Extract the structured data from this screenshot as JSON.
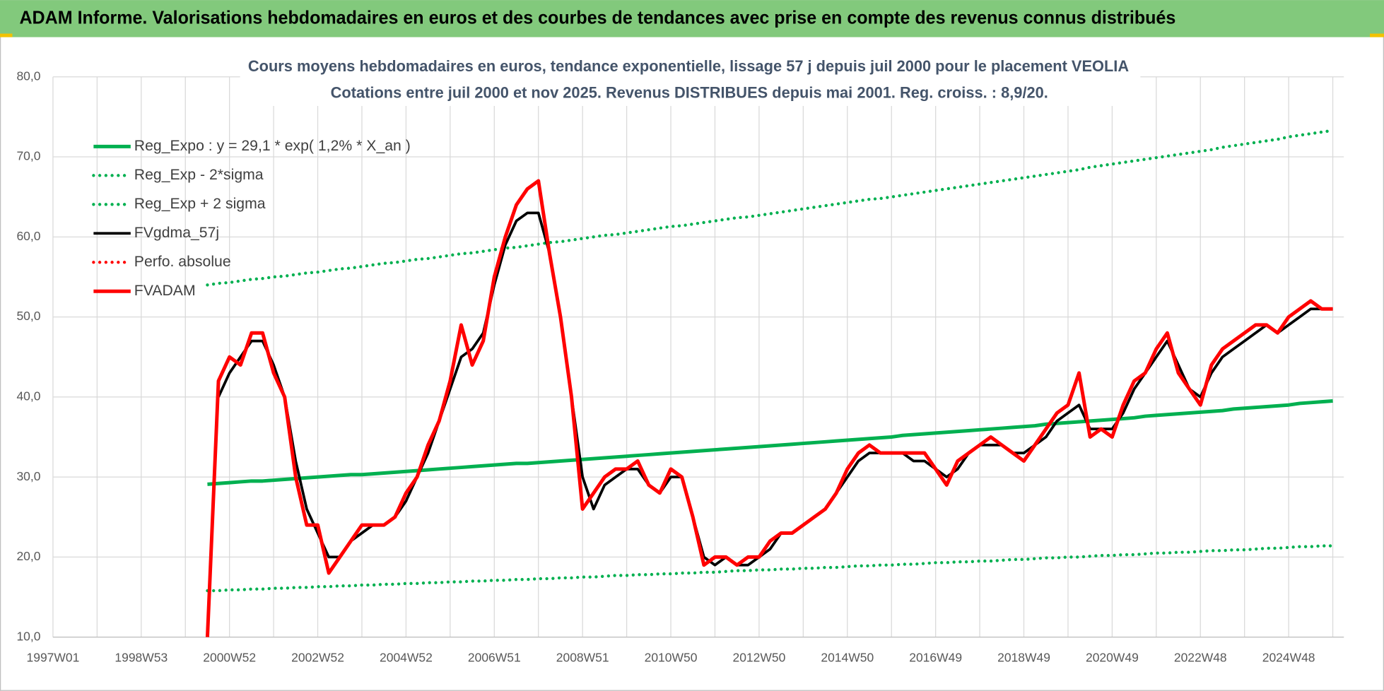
{
  "header": {
    "title": "ADAM Informe. Valorisations hebdomadaires en euros et des courbes de tendances avec prise en compte des revenus connus distribués"
  },
  "chart_data": {
    "type": "line",
    "title": "Cours moyens hebdomadaires en euros, tendance exponentielle, lissage 57 j depuis juil 2000 pour le placement VEOLIA",
    "subtitle": "Cotations entre juil 2000 et nov 2025. Revenus DISTRIBUES depuis mai 2001. Reg. croiss. : 8,9/20.",
    "grid": true,
    "legend": "top-left",
    "ylim": [
      10,
      80
    ],
    "yticks": [
      {
        "value": 10,
        "label": "10,0"
      },
      {
        "value": 20,
        "label": "20,0"
      },
      {
        "value": 30,
        "label": "30,0"
      },
      {
        "value": 40,
        "label": "40,0"
      },
      {
        "value": 50,
        "label": "50,0"
      },
      {
        "value": 60,
        "label": "60,0"
      },
      {
        "value": 70,
        "label": "70,0"
      },
      {
        "value": 80,
        "label": "80,0"
      }
    ],
    "categories": [
      "1997W01",
      null,
      null,
      null,
      null,
      null,
      null,
      null,
      "1998W53",
      null,
      null,
      null,
      null,
      null,
      null,
      null,
      "2000W52",
      null,
      null,
      null,
      null,
      null,
      null,
      null,
      "2002W52",
      null,
      null,
      null,
      null,
      null,
      null,
      null,
      "2004W52",
      null,
      null,
      null,
      null,
      null,
      null,
      null,
      "2006W51",
      null,
      null,
      null,
      null,
      null,
      null,
      null,
      "2008W51",
      null,
      null,
      null,
      null,
      null,
      null,
      null,
      "2010W50",
      null,
      null,
      null,
      null,
      null,
      null,
      null,
      "2012W50",
      null,
      null,
      null,
      null,
      null,
      null,
      null,
      "2014W50",
      null,
      null,
      null,
      null,
      null,
      null,
      null,
      "2016W49",
      null,
      null,
      null,
      null,
      null,
      null,
      null,
      "2018W49",
      null,
      null,
      null,
      null,
      null,
      null,
      null,
      "2020W49",
      null,
      null,
      null,
      null,
      null,
      null,
      null,
      "2022W48",
      null,
      null,
      null,
      null,
      null,
      null,
      null,
      "2024W48",
      null,
      null,
      null,
      null
    ],
    "series": [
      {
        "name": "Reg_Expo : y = 29,1 * exp( 1,2% *  X_an )",
        "color": "#00b050",
        "linestyle": "solid",
        "values": [
          null,
          null,
          null,
          null,
          null,
          null,
          null,
          null,
          null,
          null,
          null,
          null,
          null,
          null,
          29.1,
          29.2,
          29.3,
          29.4,
          29.5,
          29.5,
          29.6,
          29.7,
          29.8,
          29.9,
          30.0,
          30.1,
          30.2,
          30.3,
          30.3,
          30.4,
          30.5,
          30.6,
          30.7,
          30.8,
          30.9,
          31.0,
          31.1,
          31.2,
          31.3,
          31.4,
          31.5,
          31.6,
          31.7,
          31.7,
          31.8,
          31.9,
          32.0,
          32.1,
          32.2,
          32.3,
          32.4,
          32.5,
          32.6,
          32.7,
          32.8,
          32.9,
          33.0,
          33.1,
          33.2,
          33.3,
          33.4,
          33.5,
          33.6,
          33.7,
          33.8,
          33.9,
          34.0,
          34.1,
          34.2,
          34.3,
          34.4,
          34.5,
          34.6,
          34.7,
          34.8,
          34.9,
          35.0,
          35.2,
          35.3,
          35.4,
          35.5,
          35.6,
          35.7,
          35.8,
          35.9,
          36.0,
          36.1,
          36.2,
          36.3,
          36.4,
          36.6,
          36.7,
          36.8,
          36.9,
          37.0,
          37.1,
          37.2,
          37.3,
          37.4,
          37.6,
          37.7,
          37.8,
          37.9,
          38.0,
          38.1,
          38.2,
          38.3,
          38.5,
          38.6,
          38.7,
          38.8,
          38.9,
          39.0,
          39.2,
          39.3,
          39.4,
          39.5
        ]
      },
      {
        "name": "Reg_Exp - 2*sigma",
        "color": "#00b050",
        "linestyle": "dotted",
        "values": [
          null,
          null,
          null,
          null,
          null,
          null,
          null,
          null,
          null,
          null,
          null,
          null,
          null,
          null,
          15.8,
          15.8,
          15.9,
          15.9,
          16.0,
          16.0,
          16.1,
          16.1,
          16.2,
          16.2,
          16.3,
          16.3,
          16.4,
          16.4,
          16.5,
          16.5,
          16.6,
          16.6,
          16.7,
          16.7,
          16.8,
          16.8,
          16.9,
          16.9,
          17.0,
          17.0,
          17.1,
          17.1,
          17.2,
          17.2,
          17.3,
          17.3,
          17.4,
          17.4,
          17.5,
          17.5,
          17.6,
          17.7,
          17.7,
          17.8,
          17.8,
          17.9,
          17.9,
          18.0,
          18.0,
          18.1,
          18.1,
          18.2,
          18.3,
          18.3,
          18.4,
          18.4,
          18.5,
          18.5,
          18.6,
          18.6,
          18.7,
          18.7,
          18.8,
          18.9,
          18.9,
          19.0,
          19.0,
          19.1,
          19.1,
          19.2,
          19.3,
          19.3,
          19.4,
          19.4,
          19.5,
          19.5,
          19.6,
          19.7,
          19.7,
          19.8,
          19.9,
          19.9,
          20.0,
          20.0,
          20.1,
          20.2,
          20.2,
          20.3,
          20.3,
          20.4,
          20.5,
          20.5,
          20.6,
          20.6,
          20.7,
          20.8,
          20.8,
          20.9,
          20.9,
          21.0,
          21.1,
          21.1,
          21.2,
          21.3,
          21.3,
          21.4,
          21.4
        ]
      },
      {
        "name": "Reg_Exp + 2 sigma",
        "color": "#00b050",
        "linestyle": "dotted",
        "values": [
          null,
          null,
          null,
          null,
          null,
          null,
          null,
          null,
          null,
          null,
          null,
          null,
          null,
          null,
          54.0,
          54.2,
          54.3,
          54.5,
          54.7,
          54.8,
          55.0,
          55.1,
          55.3,
          55.5,
          55.6,
          55.8,
          56.0,
          56.1,
          56.3,
          56.5,
          56.7,
          56.8,
          57.0,
          57.2,
          57.3,
          57.5,
          57.7,
          57.9,
          58.0,
          58.2,
          58.4,
          58.6,
          58.7,
          58.9,
          59.1,
          59.3,
          59.4,
          59.6,
          59.8,
          60.0,
          60.2,
          60.3,
          60.5,
          60.7,
          60.9,
          61.1,
          61.3,
          61.4,
          61.6,
          61.8,
          62.0,
          62.2,
          62.4,
          62.5,
          62.7,
          62.9,
          63.1,
          63.3,
          63.5,
          63.7,
          63.9,
          64.1,
          64.3,
          64.5,
          64.7,
          64.8,
          65.0,
          65.2,
          65.4,
          65.6,
          65.8,
          66.0,
          66.2,
          66.4,
          66.6,
          66.8,
          67.0,
          67.2,
          67.4,
          67.6,
          67.8,
          68.0,
          68.2,
          68.4,
          68.7,
          68.9,
          69.1,
          69.3,
          69.5,
          69.7,
          69.9,
          70.1,
          70.3,
          70.5,
          70.7,
          70.9,
          71.2,
          71.4,
          71.6,
          71.8,
          72.0,
          72.2,
          72.5,
          72.7,
          72.9,
          73.1,
          73.3
        ]
      },
      {
        "name": "FVgdma_57j",
        "color": "#000000",
        "linestyle": "solid",
        "values": [
          null,
          null,
          null,
          null,
          null,
          null,
          null,
          null,
          null,
          null,
          null,
          null,
          null,
          null,
          null,
          40,
          43,
          45,
          47,
          47,
          44,
          40,
          32,
          26,
          23,
          20,
          20,
          22,
          23,
          24,
          24,
          25,
          27,
          30,
          33,
          37,
          41,
          45,
          46,
          48,
          54,
          59,
          62,
          63,
          63,
          58,
          50,
          40,
          30,
          26,
          29,
          30,
          31,
          31,
          29,
          28,
          30,
          30,
          25,
          20,
          19,
          20,
          19,
          19,
          20,
          21,
          23,
          23,
          24,
          25,
          26,
          28,
          30,
          32,
          33,
          33,
          33,
          33,
          32,
          32,
          31,
          30,
          31,
          33,
          34,
          34,
          34,
          33,
          33,
          34,
          35,
          37,
          38,
          39,
          36,
          36,
          36,
          38,
          41,
          43,
          45,
          47,
          44,
          41,
          40,
          43,
          45,
          46,
          47,
          48,
          49,
          48,
          49,
          50,
          51,
          51,
          51
        ]
      },
      {
        "name": "Perfo. absolue",
        "color": "#ff0000",
        "linestyle": "dotted",
        "values": [
          null,
          null,
          null,
          null,
          null,
          null,
          null,
          null,
          null,
          null,
          null,
          null,
          null,
          null,
          null,
          null,
          null,
          null,
          null,
          null,
          null,
          null,
          null,
          null,
          null,
          null,
          null,
          null,
          null,
          null,
          null,
          null,
          null,
          null,
          null,
          null,
          null,
          null,
          null,
          null,
          null,
          null,
          null,
          null,
          null,
          null,
          null,
          null,
          null,
          null,
          null,
          null,
          null,
          null,
          null,
          null,
          null,
          null,
          null,
          null,
          null,
          null,
          null,
          null,
          null,
          null,
          null,
          null,
          null,
          null,
          null,
          null,
          null,
          null,
          null,
          null,
          null,
          null,
          null,
          null,
          null,
          null,
          null,
          null,
          null,
          null,
          null,
          null,
          null,
          null,
          null,
          null,
          null,
          null,
          null,
          null,
          null,
          null,
          null,
          null,
          null,
          null,
          null,
          null,
          null,
          null,
          null,
          null,
          null,
          null,
          null,
          null,
          null,
          null,
          null,
          null,
          null
        ]
      },
      {
        "name": "FVADAM",
        "color": "#ff0000",
        "linestyle": "solid",
        "values": [
          null,
          null,
          null,
          null,
          null,
          null,
          null,
          null,
          null,
          null,
          null,
          null,
          null,
          null,
          10,
          42,
          45,
          44,
          48,
          48,
          43,
          40,
          30,
          24,
          24,
          18,
          20,
          22,
          24,
          24,
          24,
          25,
          28,
          30,
          34,
          37,
          42,
          49,
          44,
          47,
          55,
          60,
          64,
          66,
          67,
          58,
          50,
          40,
          26,
          28,
          30,
          31,
          31,
          32,
          29,
          28,
          31,
          30,
          25,
          19,
          20,
          20,
          19,
          20,
          20,
          22,
          23,
          23,
          24,
          25,
          26,
          28,
          31,
          33,
          34,
          33,
          33,
          33,
          33,
          33,
          31,
          29,
          32,
          33,
          34,
          35,
          34,
          33,
          32,
          34,
          36,
          38,
          39,
          43,
          35,
          36,
          35,
          39,
          42,
          43,
          46,
          48,
          43,
          41,
          39,
          44,
          46,
          47,
          48,
          49,
          49,
          48,
          50,
          51,
          52,
          51,
          51
        ]
      }
    ]
  }
}
